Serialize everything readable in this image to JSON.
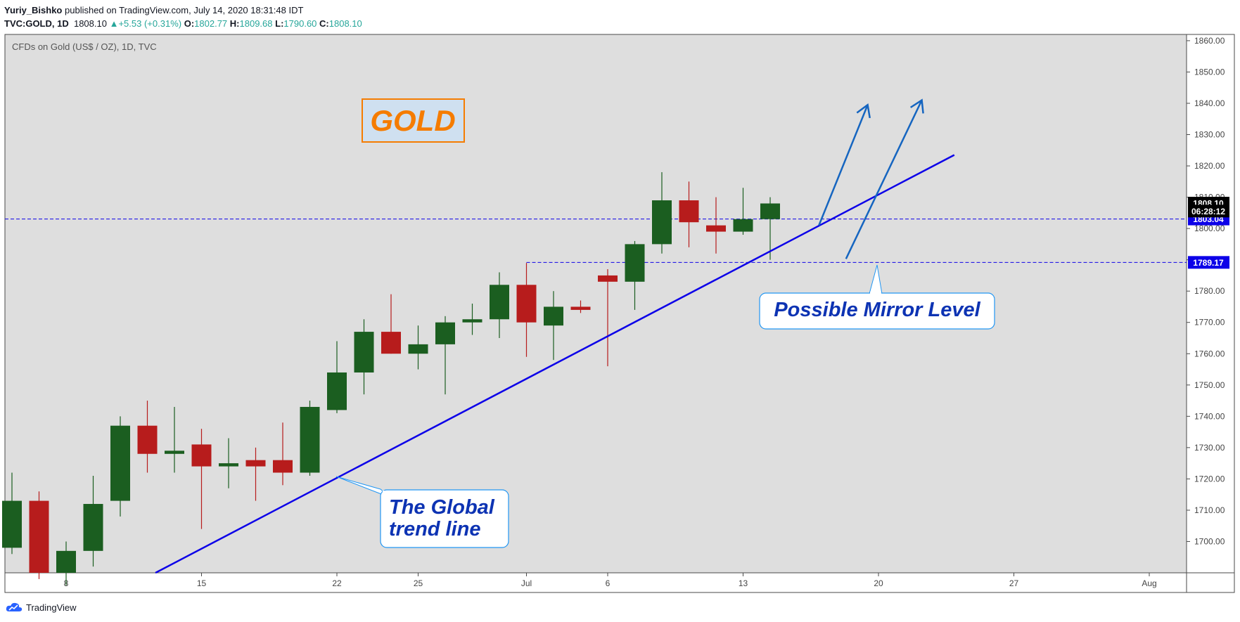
{
  "header": {
    "author": "Yuriy_Bishko",
    "published": "published on TradingView.com, July 14, 2020 18:31:48 IDT",
    "symbol": "TVC:GOLD, 1D",
    "last": "1808.10",
    "change": "+5.53 (+0.31%)",
    "o_label": "O:",
    "o": "1802.77",
    "h_label": "H:",
    "h": "1809.68",
    "l_label": "L:",
    "l": "1790.60",
    "c_label": "C:",
    "c": "1808.10"
  },
  "footer": {
    "brand": "TradingView"
  },
  "colors": {
    "bull": "#1b5e20",
    "bear": "#b71c1c",
    "pane": "#dedede",
    "trend": "#0c00e8",
    "arrow": "#1565c0",
    "gold": "#f57c00",
    "callout_text": "#0d33b3"
  },
  "chart_data": {
    "type": "candlestick",
    "title": "CFDs on Gold (US$ / OZ), 1D, TVC",
    "ylim": [
      1690,
      1862
    ],
    "y_ticks": [
      1700,
      1710,
      1720,
      1730,
      1740,
      1750,
      1760,
      1770,
      1780,
      1790,
      1800,
      1810,
      1820,
      1830,
      1840,
      1850,
      1860
    ],
    "y_tick_labels": [
      "1700.00",
      "1710.00",
      "1720.00",
      "1730.00",
      "1740.00",
      "1750.00",
      "1760.00",
      "1770.00",
      "1780.00",
      "1790.00",
      "1800.00",
      "1810.00",
      "1820.00",
      "1830.00",
      "1840.00",
      "1850.00",
      "1860.00"
    ],
    "x_labels": [
      {
        "index": 2,
        "label": "8"
      },
      {
        "index": 7,
        "label": "15"
      },
      {
        "index": 12,
        "label": "22"
      },
      {
        "index": 15,
        "label": "25"
      },
      {
        "index": 19,
        "label": "Jul"
      },
      {
        "index": 22,
        "label": "6"
      },
      {
        "index": 27,
        "label": "13"
      },
      {
        "index": 32,
        "label": "20"
      },
      {
        "index": 37,
        "label": "27"
      },
      {
        "index": 42,
        "label": "Aug"
      }
    ],
    "candles": [
      {
        "o": 1698,
        "h": 1722,
        "l": 1696,
        "c": 1713
      },
      {
        "o": 1713,
        "h": 1716,
        "l": 1688,
        "c": 1690
      },
      {
        "o": 1690,
        "h": 1700,
        "l": 1686,
        "c": 1697
      },
      {
        "o": 1697,
        "h": 1721,
        "l": 1692,
        "c": 1712
      },
      {
        "o": 1713,
        "h": 1740,
        "l": 1708,
        "c": 1737
      },
      {
        "o": 1737,
        "h": 1745,
        "l": 1722,
        "c": 1728
      },
      {
        "o": 1728,
        "h": 1743,
        "l": 1722,
        "c": 1729
      },
      {
        "o": 1731,
        "h": 1736,
        "l": 1704,
        "c": 1724
      },
      {
        "o": 1724,
        "h": 1733,
        "l": 1717,
        "c": 1725
      },
      {
        "o": 1726,
        "h": 1730,
        "l": 1713,
        "c": 1724
      },
      {
        "o": 1726,
        "h": 1738,
        "l": 1718,
        "c": 1722
      },
      {
        "o": 1722,
        "h": 1745,
        "l": 1721,
        "c": 1743
      },
      {
        "o": 1742,
        "h": 1764,
        "l": 1741,
        "c": 1754
      },
      {
        "o": 1754,
        "h": 1771,
        "l": 1747,
        "c": 1767
      },
      {
        "o": 1767,
        "h": 1779,
        "l": 1760,
        "c": 1760
      },
      {
        "o": 1760,
        "h": 1769,
        "l": 1755,
        "c": 1763
      },
      {
        "o": 1763,
        "h": 1772,
        "l": 1747,
        "c": 1770
      },
      {
        "o": 1770,
        "h": 1776,
        "l": 1766,
        "c": 1771
      },
      {
        "o": 1771,
        "h": 1786,
        "l": 1765,
        "c": 1782
      },
      {
        "o": 1782,
        "h": 1789,
        "l": 1759,
        "c": 1770
      },
      {
        "o": 1769,
        "h": 1780,
        "l": 1758,
        "c": 1775
      },
      {
        "o": 1775,
        "h": 1777,
        "l": 1773,
        "c": 1774
      },
      {
        "o": 1785,
        "h": 1787,
        "l": 1756,
        "c": 1783
      },
      {
        "o": 1783,
        "h": 1796,
        "l": 1774,
        "c": 1795
      },
      {
        "o": 1795,
        "h": 1818,
        "l": 1792,
        "c": 1809
      },
      {
        "o": 1809,
        "h": 1815,
        "l": 1794,
        "c": 1802
      },
      {
        "o": 1801,
        "h": 1810,
        "l": 1792,
        "c": 1799
      },
      {
        "o": 1799,
        "h": 1813,
        "l": 1798,
        "c": 1803
      },
      {
        "o": 1803,
        "h": 1810,
        "l": 1790,
        "c": 1808
      }
    ],
    "price_labels": [
      {
        "value": 1808.1,
        "label": "1808.10",
        "bg": "#000000"
      },
      {
        "value": 1803.04,
        "label": "1803.04",
        "bg": "#0c00e8"
      },
      {
        "value": 1789.17,
        "label": "1789.17",
        "bg": "#0c00e8"
      }
    ],
    "countdown": "06:28:12",
    "horizontal_levels": [
      {
        "value": 1803.04,
        "from_index": 0
      },
      {
        "value": 1789.17,
        "from_index": 19
      }
    ],
    "trend_line": {
      "from": {
        "index": 5.3,
        "value": 1690
      },
      "to": {
        "index": 34.8,
        "value": 1823.5
      }
    },
    "arrows": [
      {
        "from": {
          "index": 29.8,
          "value": 1801
        },
        "to": {
          "index": 31.6,
          "value": 1839.5
        }
      },
      {
        "from": {
          "index": 30.8,
          "value": 1790.3
        },
        "to": {
          "index": 33.6,
          "value": 1841
        }
      }
    ],
    "annotations": {
      "gold_label": "GOLD",
      "trend_label": [
        "The Global",
        "trend line"
      ],
      "mirror_label": "Possible Mirror Level"
    }
  }
}
